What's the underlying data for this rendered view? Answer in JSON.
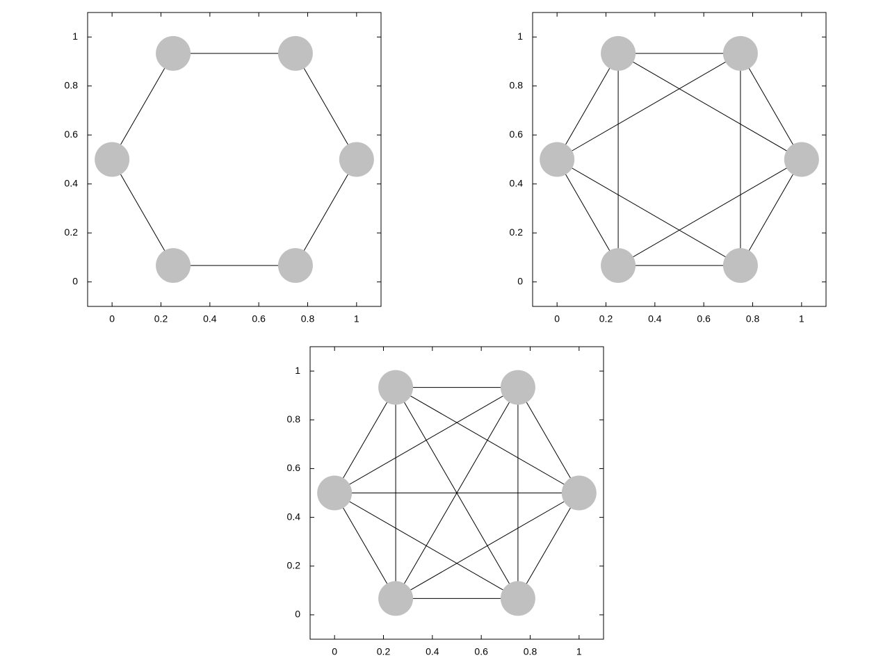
{
  "chart_data": [
    {
      "type": "network",
      "x": [
        0,
        0.25,
        0.75,
        1,
        0.75,
        0.25
      ],
      "y": [
        0.5,
        0.933,
        0.933,
        0.5,
        0.067,
        0.067
      ],
      "edges": [
        [
          0,
          1
        ],
        [
          1,
          2
        ],
        [
          2,
          3
        ],
        [
          3,
          4
        ],
        [
          4,
          5
        ],
        [
          5,
          0
        ]
      ],
      "node_color": "#c0c0c0",
      "edge_color": "#000000",
      "xlim": [
        -0.1,
        1.1
      ],
      "ylim": [
        -0.1,
        1.1
      ],
      "xticks": [
        0,
        0.2,
        0.4,
        0.6,
        0.8,
        1
      ],
      "yticks": [
        0,
        0.2,
        0.4,
        0.6,
        0.8,
        1
      ]
    },
    {
      "type": "network",
      "x": [
        0,
        0.25,
        0.75,
        1,
        0.75,
        0.25
      ],
      "y": [
        0.5,
        0.933,
        0.933,
        0.5,
        0.067,
        0.067
      ],
      "edges": [
        [
          0,
          1
        ],
        [
          1,
          2
        ],
        [
          2,
          3
        ],
        [
          3,
          4
        ],
        [
          4,
          5
        ],
        [
          5,
          0
        ],
        [
          0,
          2
        ],
        [
          0,
          4
        ],
        [
          1,
          3
        ],
        [
          1,
          5
        ],
        [
          2,
          4
        ],
        [
          3,
          5
        ]
      ],
      "node_color": "#c0c0c0",
      "edge_color": "#000000",
      "xlim": [
        -0.1,
        1.1
      ],
      "ylim": [
        -0.1,
        1.1
      ],
      "xticks": [
        0,
        0.2,
        0.4,
        0.6,
        0.8,
        1
      ],
      "yticks": [
        0,
        0.2,
        0.4,
        0.6,
        0.8,
        1
      ]
    },
    {
      "type": "network",
      "x": [
        0,
        0.25,
        0.75,
        1,
        0.75,
        0.25
      ],
      "y": [
        0.5,
        0.933,
        0.933,
        0.5,
        0.067,
        0.067
      ],
      "edges": [
        [
          0,
          1
        ],
        [
          0,
          2
        ],
        [
          0,
          3
        ],
        [
          0,
          4
        ],
        [
          0,
          5
        ],
        [
          1,
          2
        ],
        [
          1,
          3
        ],
        [
          1,
          4
        ],
        [
          1,
          5
        ],
        [
          2,
          3
        ],
        [
          2,
          4
        ],
        [
          2,
          5
        ],
        [
          3,
          4
        ],
        [
          3,
          5
        ],
        [
          4,
          5
        ]
      ],
      "node_color": "#c0c0c0",
      "edge_color": "#000000",
      "xlim": [
        -0.1,
        1.1
      ],
      "ylim": [
        -0.1,
        1.1
      ],
      "xticks": [
        0,
        0.2,
        0.4,
        0.6,
        0.8,
        1
      ],
      "yticks": [
        0,
        0.2,
        0.4,
        0.6,
        0.8,
        1
      ]
    }
  ]
}
